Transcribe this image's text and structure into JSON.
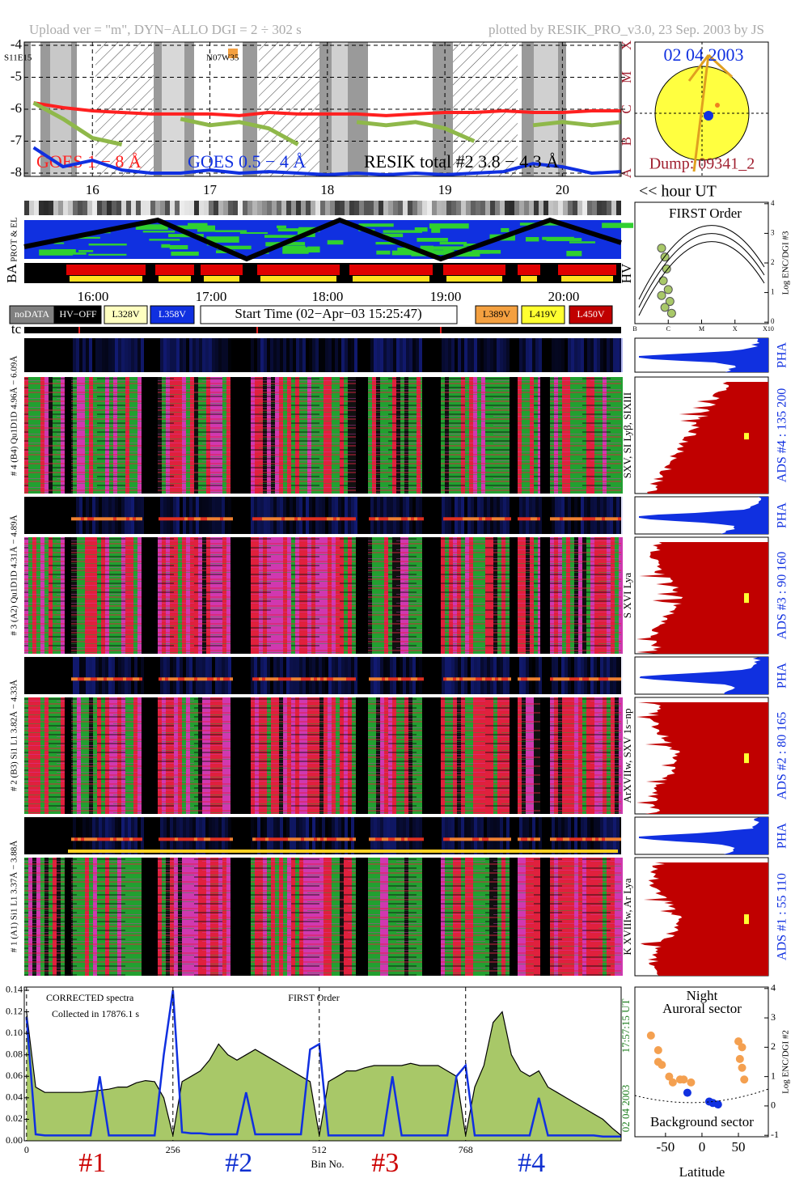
{
  "header": {
    "left": "Upload ver = \"m\", DYN−ALLO DGI =   2 ÷ 302 s",
    "right": "plotted by RESIK_PRO_v3.0, 23 Sep. 2003 by JS"
  },
  "sun": {
    "date": "02 04 2003",
    "dump": "Dump: 09341_2"
  },
  "timeline": {
    "labels": [
      "16:00",
      "17:00",
      "18:00",
      "19:00",
      "20:00"
    ],
    "panels": [
      "PROT & EL",
      "BA",
      "HV",
      "tc"
    ]
  },
  "legend": [
    {
      "label": "noDATA",
      "color": "#808080"
    },
    {
      "label": "HV−OFF",
      "color": "#000000"
    },
    {
      "label": "L328V",
      "color": "#ffffc0"
    },
    {
      "label": "L358V",
      "color": "#1030e0"
    },
    {
      "label": "L389V",
      "color": "#f4a040"
    },
    {
      "label": "L419V",
      "color": "#ffff30"
    },
    {
      "label": "L450V",
      "color": "#c00000"
    }
  ],
  "start_time": "Start Time (02−Apr−03 15:25:47)",
  "channels": [
    {
      "range": "# 4 (B4) Qu1D1D 4.96Å − 6.09Å",
      "lines": "SXV, SI Lyβ, SIXIII",
      "ads": "ADS #4 :   135 200",
      "pha": "PHA"
    },
    {
      "range": "# 3 (A2) Qu1D1D 4.31Å − 4.89Å",
      "lines": "S XVI Lya",
      "ads": "ADS #3 :   90 160",
      "pha": "PHA"
    },
    {
      "range": "# 2 (B3) Si1 L1 3.82Å − 4.33Å",
      "lines": "ArXVIIw, SXV 1s−np",
      "ads": "ADS #2 :   80 165",
      "pha": "PHA"
    },
    {
      "range": "# 1 (A1) Si1 L1 3.37Å − 3.88Å",
      "lines": "K XVIIIw, Ar Lya",
      "ads": "ADS #1 :   55 110",
      "pha": "PHA"
    }
  ],
  "chart_data": [
    {
      "type": "line",
      "xlabel": "<< hour UT",
      "x": [
        15.5,
        15.75,
        16,
        16.25,
        16.5,
        16.75,
        17,
        17.25,
        17.5,
        17.75,
        18,
        18.25,
        18.5,
        18.75,
        19,
        19.25,
        19.5,
        19.75,
        20,
        20.25,
        20.5
      ],
      "xlim": [
        15.42,
        20.5
      ],
      "xticks": [
        16,
        17,
        18,
        19,
        20
      ],
      "ylim": [
        -8.1,
        -3.9
      ],
      "yticks": [
        -4,
        -5,
        -6,
        -7,
        -8
      ],
      "y2lim": [
        -8.1,
        -3.9
      ],
      "y2ticks": [
        {
          "value": -4,
          "label": "X"
        },
        {
          "value": -5,
          "label": "M"
        },
        {
          "value": -6,
          "label": "C"
        },
        {
          "value": -7,
          "label": "B"
        },
        {
          "value": -8,
          "label": "A"
        }
      ],
      "grid": true,
      "annotations": [
        "S11E15",
        "N07W35"
      ],
      "series": [
        {
          "name": "GOES 1 − 8 Å",
          "color": "#ff2020",
          "values": [
            -5.8,
            -5.95,
            -6.05,
            -6.1,
            -6.15,
            -6.15,
            -6.15,
            -6.2,
            -6.1,
            -6.15,
            -6.15,
            -6.15,
            -6.2,
            -6.15,
            -6.1,
            -6.1,
            -6.05,
            -6.1,
            -6.1,
            -6.05,
            -6.05
          ]
        },
        {
          "name": "GOES 0.5 − 4 Å",
          "color": "#1030e0",
          "values": [
            -7.2,
            -7.8,
            -7.6,
            -7.9,
            -8.0,
            -8.0,
            -7.9,
            -8.0,
            -7.95,
            -8.0,
            -8.05,
            -8.0,
            -8.05,
            -8.0,
            -8.05,
            -8.0,
            -7.95,
            -7.7,
            -7.8,
            -8.0,
            -7.95
          ]
        },
        {
          "name": "RESIK total #2  3.8 − 4.3 Å",
          "color": "#8fb84a",
          "values": [
            -5.8,
            -6.3,
            -6.9,
            -7.1,
            null,
            -6.3,
            -6.5,
            -6.4,
            -6.6,
            -7.1,
            null,
            -6.4,
            -6.5,
            -6.4,
            -6.6,
            -7.0,
            null,
            -6.5,
            -6.4,
            -6.5,
            -6.4
          ]
        }
      ]
    },
    {
      "type": "line",
      "title": "FIRST Order",
      "notes": [
        "CORRECTED spectra",
        "Collected in 17876.1 s"
      ],
      "xlabel": "Bin No.",
      "time": "17:57:15 UT",
      "date": "02 04 2003",
      "sections": [
        {
          "label": "#1",
          "color": "#cc0000"
        },
        {
          "label": "#2",
          "color": "#1030d0"
        },
        {
          "label": "#3",
          "color": "#cc0000"
        },
        {
          "label": "#4",
          "color": "#1030d0"
        }
      ],
      "x": [
        0,
        16,
        32,
        48,
        64,
        80,
        96,
        112,
        128,
        144,
        160,
        176,
        192,
        208,
        224,
        240,
        256,
        272,
        288,
        304,
        320,
        336,
        352,
        368,
        384,
        400,
        416,
        432,
        448,
        464,
        480,
        496,
        512,
        528,
        544,
        560,
        576,
        592,
        608,
        624,
        640,
        656,
        672,
        688,
        704,
        720,
        736,
        752,
        768,
        784,
        800,
        816,
        832,
        848,
        864,
        880,
        896,
        912,
        928,
        944,
        960,
        976,
        992,
        1008,
        1024,
        1040
      ],
      "xlim": [
        -4,
        1040
      ],
      "xticks": [
        0,
        256,
        512,
        768
      ],
      "ylim": [
        0,
        0.143
      ],
      "yticks": [
        {
          "value": 0,
          "label": "0.00"
        },
        0.02,
        0.04,
        0.06,
        0.08,
        {
          "value": 0.1,
          "label": "0.10"
        },
        0.12,
        0.14
      ],
      "series": [
        {
          "color": "#a8c868",
          "values": [
            0.12,
            0.05,
            0.045,
            0.045,
            0.045,
            0.045,
            0.045,
            0.046,
            0.047,
            0.048,
            0.05,
            0.05,
            0.054,
            0.056,
            0.055,
            0.04,
            0.005,
            0.055,
            0.06,
            0.065,
            0.075,
            0.09,
            0.08,
            0.075,
            0.08,
            0.085,
            0.08,
            0.075,
            0.07,
            0.065,
            0.06,
            0.055,
            0.005,
            0.055,
            0.06,
            0.065,
            0.065,
            0.068,
            0.07,
            0.07,
            0.07,
            0.07,
            0.072,
            0.07,
            0.07,
            0.07,
            0.065,
            0.06,
            0.005,
            0.05,
            0.07,
            0.11,
            0.12,
            0.08,
            0.065,
            0.06,
            0.065,
            0.05,
            0.045,
            0.04,
            0.035,
            0.03,
            0.025,
            0.02,
            0.012,
            0.005
          ]
        },
        {
          "color": "#1030e0",
          "values": [
            0.115,
            0.006,
            0.005,
            0.005,
            0.005,
            0.005,
            0.005,
            0.005,
            0.06,
            0.005,
            0.005,
            0.005,
            0.005,
            0.005,
            0.005,
            0.08,
            0.14,
            0.008,
            0.007,
            0.007,
            0.006,
            0.006,
            0.006,
            0.006,
            0.045,
            0.006,
            0.006,
            0.006,
            0.006,
            0.006,
            0.006,
            0.085,
            0.09,
            0.005,
            0.005,
            0.005,
            0.005,
            0.005,
            0.005,
            0.005,
            0.06,
            0.005,
            0.005,
            0.005,
            0.005,
            0.005,
            0.005,
            0.06,
            0.07,
            0.005,
            0.005,
            0.005,
            0.005,
            0.005,
            0.005,
            0.005,
            0.04,
            0.005,
            0.005,
            0.005,
            0.005,
            0.005,
            0.005,
            0.004,
            0.004,
            0.004
          ]
        }
      ]
    },
    {
      "type": "scatter",
      "title": "FIRST Order",
      "ylabel": "Log ENC/DGI #3",
      "xlim": [
        -7,
        -3
      ],
      "xticks": [
        {
          "value": -7,
          "label": "B"
        },
        {
          "value": -6,
          "label": "C"
        },
        {
          "value": -5,
          "label": "M"
        },
        {
          "value": -4,
          "label": "X"
        },
        {
          "value": -3,
          "label": "X10"
        }
      ],
      "ylim": [
        -0.05,
        4.05
      ],
      "yticks": [
        0,
        1,
        2,
        3,
        4
      ],
      "series": [
        {
          "color": "#a8c868",
          "x": [
            -6.2,
            -6.1,
            -6.05,
            -6.15,
            -6.0,
            -5.95,
            -6.1,
            -6.2,
            -5.9
          ],
          "y": [
            2.5,
            2.2,
            1.8,
            1.4,
            1.1,
            0.7,
            0.5,
            0.9,
            0.3
          ]
        }
      ]
    },
    {
      "type": "scatter",
      "title": "Night",
      "subtitle": "Auroral sector",
      "annotation": "Background sector",
      "xlabel": "Latitude",
      "ylabel": "Log ENC/DGI #2",
      "xlim": [
        -92,
        91
      ],
      "xticks": [
        -50,
        0,
        50
      ],
      "ylim": [
        -1.05,
        4.05
      ],
      "yticks": [
        -1,
        0,
        1,
        2,
        3,
        4
      ],
      "series": [
        {
          "color": "#f4a050",
          "x": [
            -70,
            -60,
            -55,
            -45,
            -40,
            -30,
            -25,
            -15,
            50,
            55,
            52,
            55,
            58,
            -60
          ],
          "y": [
            2.4,
            1.9,
            1.4,
            1.0,
            0.8,
            0.9,
            0.9,
            0.8,
            2.2,
            2.0,
            1.6,
            1.3,
            0.9,
            1.5
          ]
        },
        {
          "color": "#1030e0",
          "x": [
            -20,
            10,
            15,
            22
          ],
          "y": [
            0.45,
            0.15,
            0.1,
            0.05
          ]
        }
      ]
    }
  ]
}
